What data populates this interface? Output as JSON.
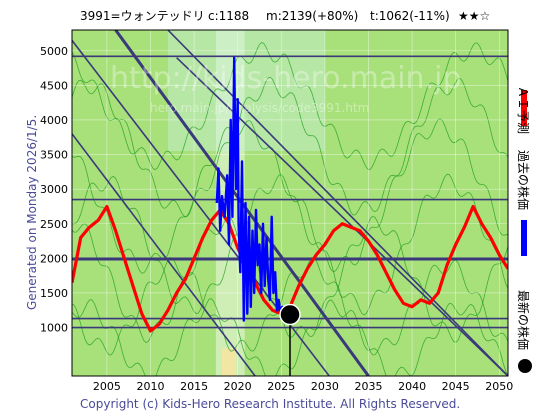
{
  "header": {
    "ticker": "3991=ウォンテッドリ",
    "current": "c:1188",
    "mid": "m:2139(+80%)",
    "target": "t:1062(-11%)",
    "stars": "★★☆"
  },
  "side_note": "Generated on Monday 2026/1/5.",
  "copyright": "Copyright (c) Kids-Hero Research Institute. All Rights Reserved.",
  "watermark": {
    "line1": "http://kids-hero.main.jp",
    "line2": "hero.main.jp/analysis/code3991.htm"
  },
  "legend": {
    "ai_forecast": "ＡＩ予測",
    "past_price": "過去の株価",
    "latest_price": "最新の株価"
  },
  "colors": {
    "background": "#a8e07a",
    "ai_forecast": "#ff0000",
    "past_price": "#0000ff",
    "latest_price": "#000000",
    "channel_lines": "#3a3a7a",
    "band_lines": "#1c9c1c"
  },
  "chart_data": {
    "type": "line",
    "x_ticks": [
      2005,
      2010,
      2015,
      2020,
      2025,
      2030,
      2035,
      2040,
      2045,
      2050
    ],
    "y_ticks": [
      1000,
      1500,
      2000,
      2500,
      3000,
      3500,
      4000,
      4500,
      5000
    ],
    "xlim": [
      2001,
      2051
    ],
    "ylim": [
      300,
      5300
    ],
    "horizontal_levels": [
      1000,
      1130,
      1990,
      2850,
      4920
    ],
    "latest_point": {
      "x": 2026.0,
      "y": 1188
    },
    "series": [
      {
        "name": "ＡＩ予測",
        "x": [
          2001,
          2002,
          2003,
          2004,
          2005,
          2006,
          2007,
          2008,
          2009,
          2010,
          2011,
          2012,
          2013,
          2014,
          2015,
          2016,
          2017,
          2018,
          2019,
          2020,
          2021,
          2022,
          2023,
          2024,
          2025,
          2026,
          2027,
          2028,
          2029,
          2030,
          2031,
          2032,
          2033,
          2034,
          2035,
          2036,
          2037,
          2038,
          2039,
          2040,
          2041,
          2042,
          2043,
          2044,
          2045,
          2046,
          2047,
          2048,
          2049,
          2050,
          2051
        ],
        "y": [
          1650,
          2300,
          2450,
          2550,
          2750,
          2400,
          2000,
          1600,
          1200,
          950,
          1050,
          1250,
          1500,
          1700,
          2000,
          2300,
          2550,
          2700,
          2500,
          2150,
          1900,
          1650,
          1400,
          1250,
          1200,
          1300,
          1600,
          1850,
          2050,
          2200,
          2400,
          2500,
          2450,
          2400,
          2250,
          2050,
          1800,
          1550,
          1350,
          1300,
          1400,
          1350,
          1500,
          1900,
          2200,
          2450,
          2750,
          2500,
          2300,
          2050,
          1850
        ]
      },
      {
        "name": "過去の株価",
        "x": [
          2017.6,
          2017.8,
          2018.0,
          2018.2,
          2018.5,
          2018.8,
          2019.0,
          2019.2,
          2019.4,
          2019.6,
          2019.8,
          2020.0,
          2020.1,
          2020.3,
          2020.5,
          2020.7,
          2020.9,
          2021.1,
          2021.3,
          2021.5,
          2021.7,
          2021.9,
          2022.1,
          2022.3,
          2022.5,
          2022.7,
          2022.9,
          2023.1,
          2023.3,
          2023.5,
          2023.7,
          2023.9,
          2024.1,
          2024.3,
          2024.5,
          2024.7,
          2024.9,
          2025.1,
          2025.3,
          2025.5,
          2025.8,
          2026.0
        ],
        "y": [
          2800,
          3300,
          2400,
          2900,
          2600,
          3200,
          2200,
          4000,
          2600,
          4900,
          3000,
          4300,
          2500,
          1800,
          3400,
          1100,
          2800,
          1200,
          2600,
          1300,
          2400,
          1500,
          2700,
          1900,
          2200,
          1500,
          2500,
          1600,
          2300,
          1700,
          1400,
          2600,
          1500,
          1800,
          1250,
          1400,
          1200,
          1300,
          1150,
          1250,
          1180,
          1188
        ]
      }
    ],
    "channel_lines": [
      {
        "x": [
          2001,
          2030.5
        ],
        "y": [
          5150,
          300
        ]
      },
      {
        "x": [
          2006,
          2035
        ],
        "y": [
          5300,
          300
        ]
      },
      {
        "x": [
          2001,
          2022
        ],
        "y": [
          3800,
          300
        ]
      },
      {
        "x": [
          2012,
          2051
        ],
        "y": [
          5300,
          300
        ]
      },
      {
        "x": [
          2013,
          2051
        ],
        "y": [
          4900,
          300
        ]
      }
    ]
  }
}
